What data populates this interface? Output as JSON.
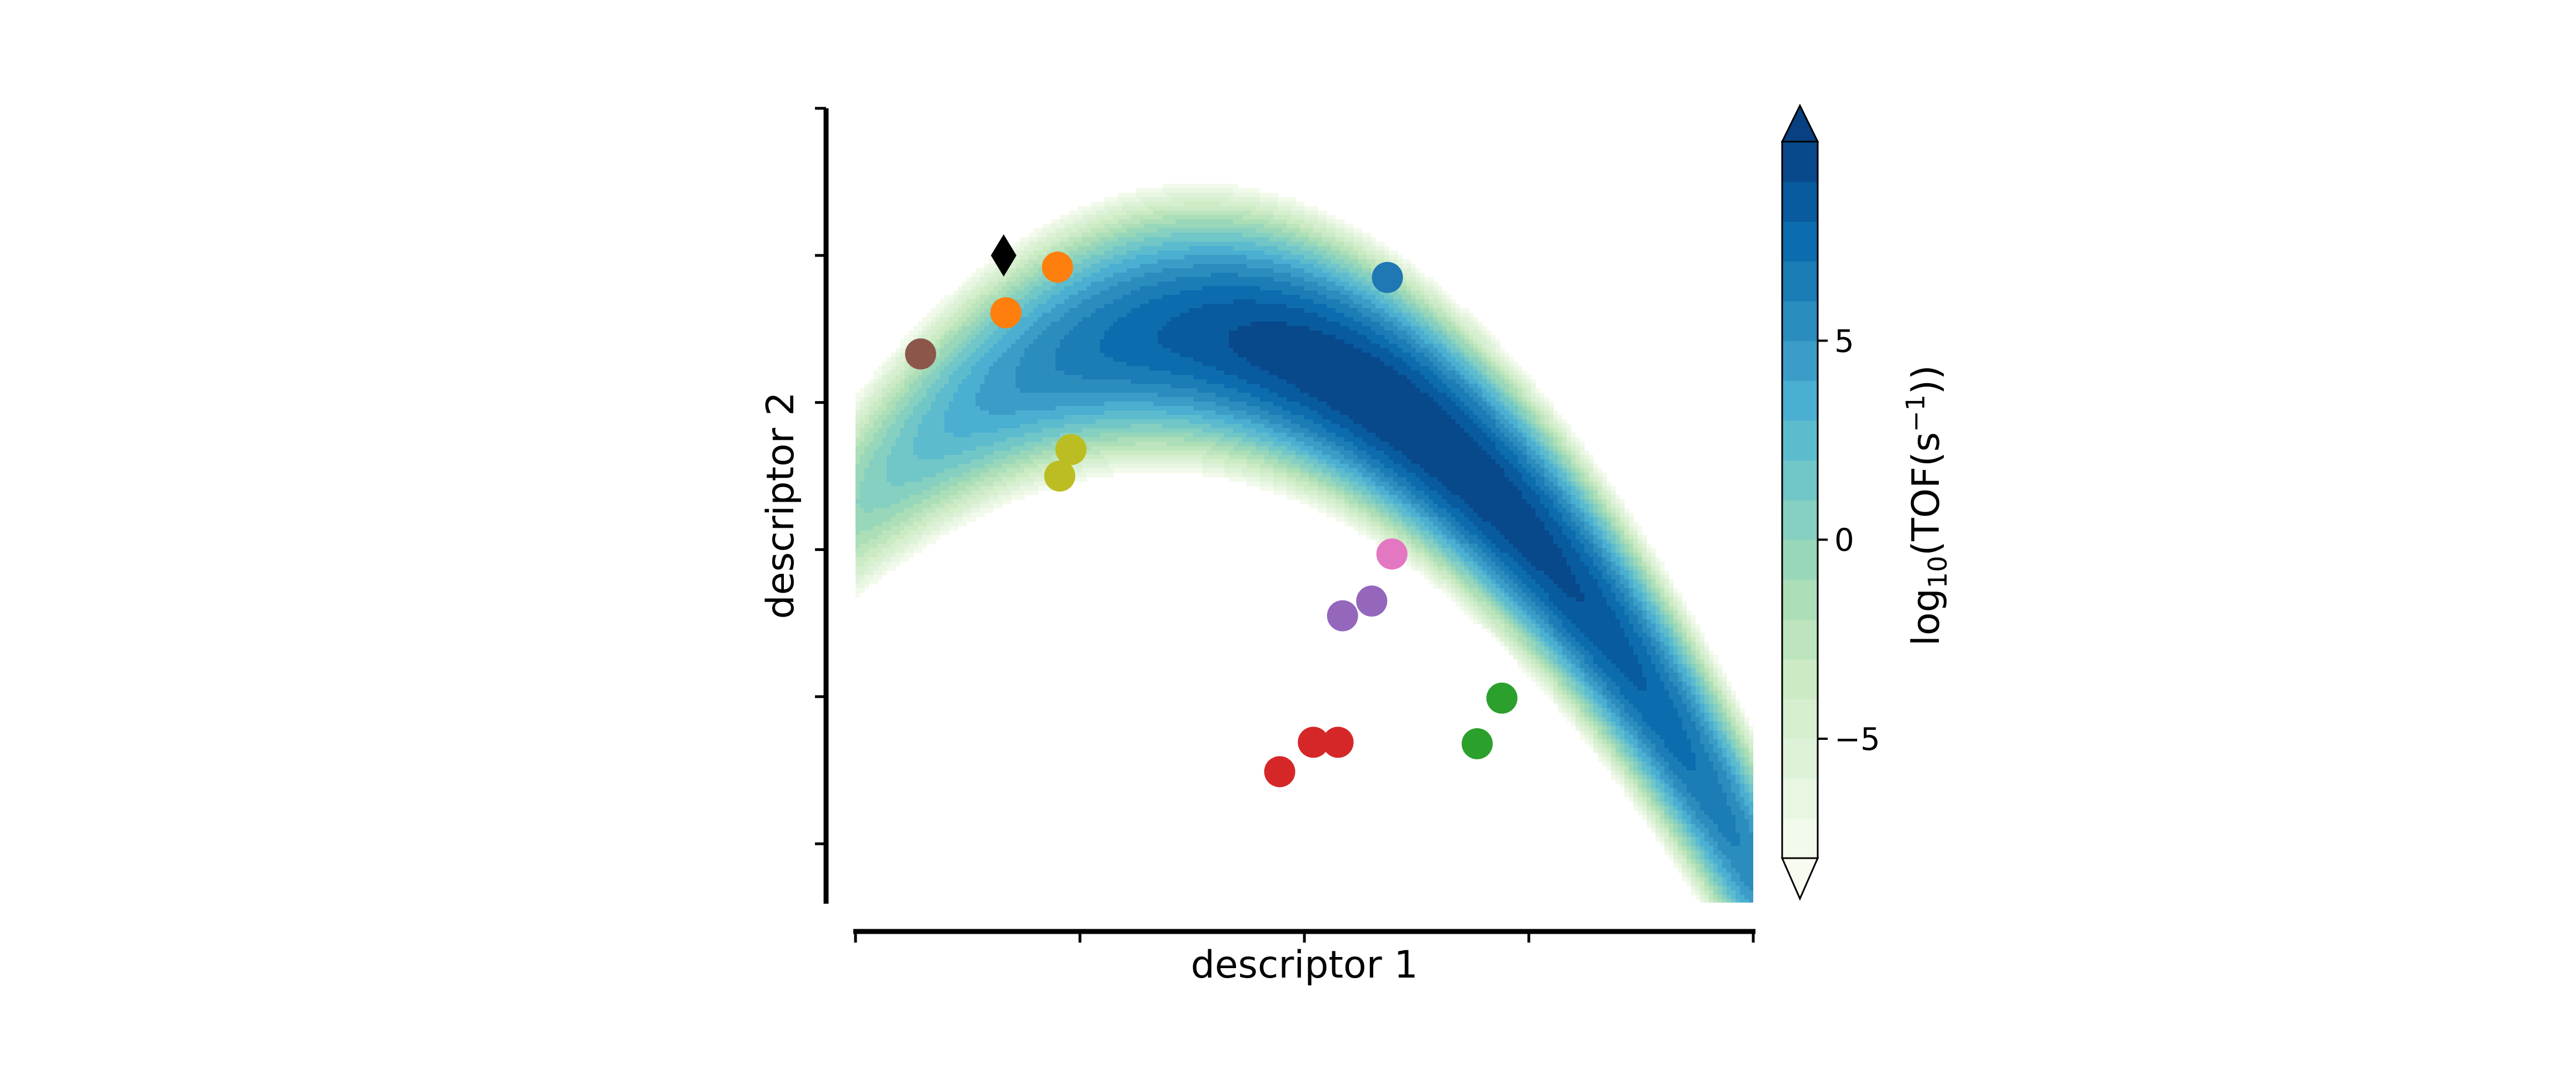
{
  "chart_data": {
    "type": "scatter",
    "xlabel": "descriptor 1",
    "ylabel": "descriptor 2",
    "x_ticks_shown": false,
    "y_ticks_shown": false,
    "background": {
      "type": "filled-contour",
      "colormap": "GnBu",
      "colormap_stops": [
        "#f7fcf0",
        "#e0f3db",
        "#ccebc5",
        "#a8ddb5",
        "#7bccc4",
        "#4eb3d3",
        "#2b8cbe",
        "#0868ac",
        "#084081"
      ],
      "level_range": [
        -8,
        10
      ],
      "num_levels": 19,
      "extend": "both"
    },
    "colorbar": {
      "label_prefix": "log",
      "label_subscript": "10",
      "label_main": "(TOF(s",
      "label_superscript": "−1",
      "label_suffix": "))",
      "ticks": [
        -5,
        0,
        5
      ],
      "tick_labels": [
        "−5",
        "0",
        "5"
      ],
      "range": [
        -8,
        10
      ]
    },
    "points": [
      {
        "x": -1.34,
        "y": 2.0,
        "color": "#000000",
        "marker": "diamond"
      },
      {
        "x": -1.1,
        "y": 1.92,
        "color": "#ff7f0e",
        "marker": "circle"
      },
      {
        "x": -1.33,
        "y": 1.61,
        "color": "#ff7f0e",
        "marker": "circle"
      },
      {
        "x": 0.37,
        "y": 1.85,
        "color": "#1f77b4",
        "marker": "circle"
      },
      {
        "x": -1.04,
        "y": 0.68,
        "color": "#bcbd22",
        "marker": "circle"
      },
      {
        "x": -1.09,
        "y": 0.5,
        "color": "#bcbd22",
        "marker": "circle"
      },
      {
        "x": -1.71,
        "y": 1.33,
        "color": "#8c564b",
        "marker": "circle"
      },
      {
        "x": 0.39,
        "y": -0.03,
        "color": "#e377c2",
        "marker": "circle"
      },
      {
        "x": 0.3,
        "y": -0.35,
        "color": "#9467bd",
        "marker": "circle"
      },
      {
        "x": 0.17,
        "y": -0.45,
        "color": "#9467bd",
        "marker": "circle"
      },
      {
        "x": 0.88,
        "y": -1.01,
        "color": "#2ca02c",
        "marker": "circle"
      },
      {
        "x": 0.77,
        "y": -1.32,
        "color": "#2ca02c",
        "marker": "circle"
      },
      {
        "x": 0.04,
        "y": -1.31,
        "color": "#d62728",
        "marker": "circle"
      },
      {
        "x": 0.15,
        "y": -1.31,
        "color": "#d62728",
        "marker": "circle"
      },
      {
        "x": -0.11,
        "y": -1.51,
        "color": "#d62728",
        "marker": "circle"
      }
    ],
    "xlim": [
      -2,
      2
    ],
    "ylim": [
      -2.4,
      3
    ]
  }
}
